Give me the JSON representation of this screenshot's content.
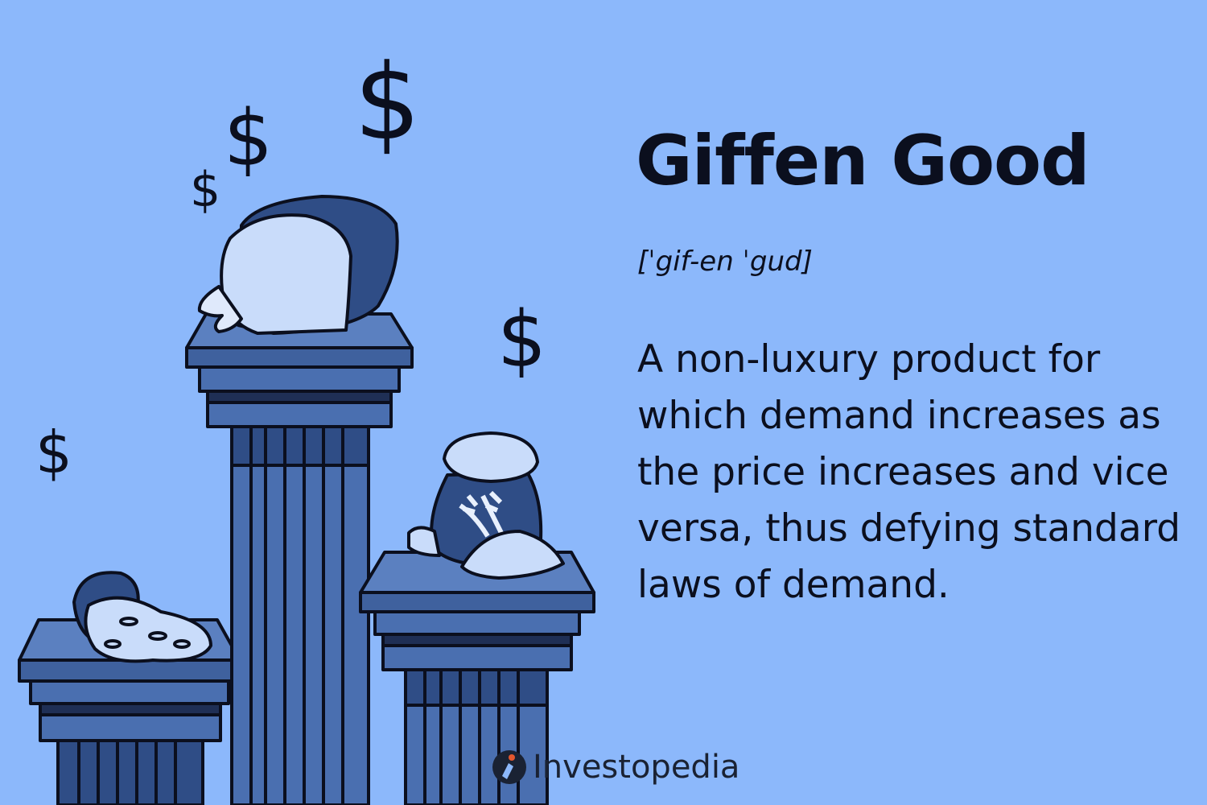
{
  "title": "Giffen Good",
  "pronunciation": "[ˈgif-en ˈgud]",
  "definition": "A non-luxury product for which demand increases as the price increases and vice versa, thus defying standard laws of demand.",
  "brand": "Investopedia",
  "dollar_symbol": "$",
  "illustration": {
    "bread_label": "",
    "rice_bag_label": "RICE"
  },
  "colors": {
    "background": "#8cb8fb",
    "pillar": "#4a6fb0",
    "pillar_dark": "#2f4d86",
    "outline": "#0b0f1e",
    "text": "#0b0f1e"
  }
}
